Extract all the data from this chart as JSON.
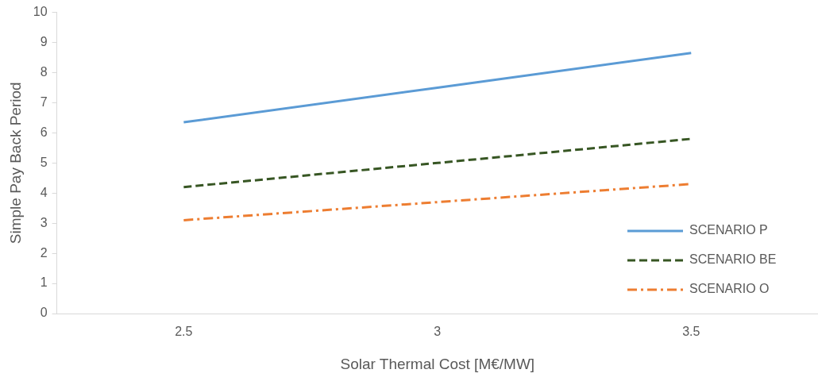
{
  "chart_data": {
    "type": "line",
    "xlabel": "Solar Thermal Cost [M€/MW]",
    "ylabel": "Simple Pay Back Period",
    "categories": [
      "2.5",
      "3",
      "3.5"
    ],
    "series": [
      {
        "name": "SCENARIO P",
        "color": "#5b9bd5",
        "line_style": "solid",
        "values": [
          6.35,
          7.5,
          8.65
        ]
      },
      {
        "name": "SCENARIO BE",
        "color": "#375623",
        "line_style": "dashed",
        "values": [
          4.2,
          5.0,
          5.8
        ]
      },
      {
        "name": "SCENARIO O",
        "color": "#ed7d31",
        "line_style": "dashdot",
        "values": [
          3.1,
          3.7,
          4.3
        ]
      }
    ],
    "ylim": [
      0,
      10
    ],
    "yticks": [
      0,
      1,
      2,
      3,
      4,
      5,
      6,
      7,
      8,
      9,
      10
    ],
    "grid": false,
    "legend": "bottom right",
    "marker": "none"
  }
}
